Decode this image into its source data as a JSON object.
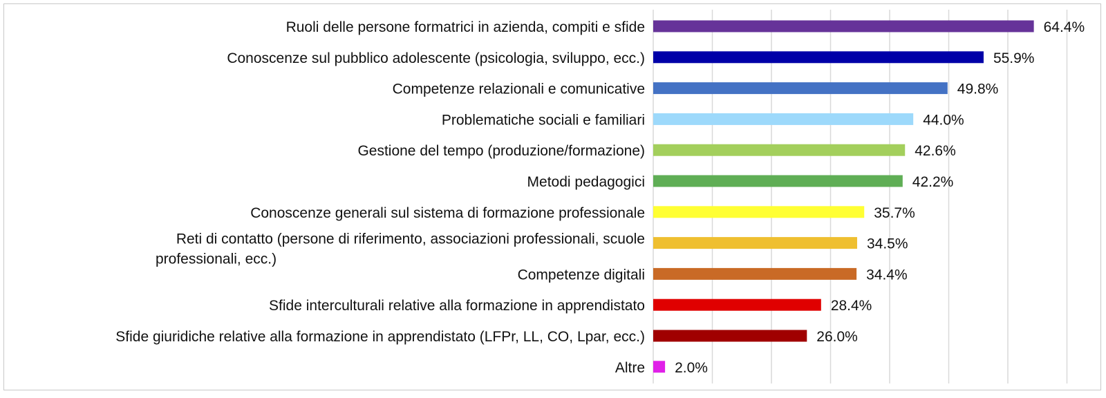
{
  "chart_data": {
    "type": "bar",
    "orientation": "horizontal",
    "title": "",
    "xlabel": "",
    "ylabel": "",
    "xlim": [
      0,
      70
    ],
    "grid": "vertical",
    "legend": "none",
    "categories": [
      "Ruoli delle persone formatrici in azienda, compiti e sfide",
      "Conoscenze sul pubblico adolescente (psicologia, sviluppo, ecc.)",
      "Competenze relazionali e comunicative",
      "Problematiche sociali e familiari",
      "Gestione del tempo (produzione/formazione)",
      "Metodi pedagogici",
      "Conoscenze generali sul sistema di formazione professionale",
      "Reti di contatto (persone di riferimento, associazioni professionali, scuole professionali, ecc.)",
      "Competenze digitali",
      "Sfide interculturali relative alla formazione in apprendistato",
      "Sfide giuridiche relative alla formazione in apprendistato (LFPr, LL, CO, Lpar, ecc.)",
      "Altre"
    ],
    "values": [
      64.4,
      55.9,
      49.8,
      44.0,
      42.6,
      42.2,
      35.7,
      34.5,
      34.4,
      28.4,
      26.0,
      2.0
    ],
    "value_labels": [
      "64.4%",
      "55.9%",
      "49.8%",
      "44.0%",
      "42.6%",
      "42.2%",
      "35.7%",
      "34.5%",
      "34.4%",
      "28.4%",
      "26.0%",
      "2.0%"
    ],
    "colors": [
      "#663399",
      "#0000a8",
      "#4472c4",
      "#9dd9fb",
      "#a3cf5c",
      "#5fae55",
      "#ffff33",
      "#efbf30",
      "#c96a26",
      "#e00000",
      "#a00000",
      "#e020e8"
    ]
  }
}
